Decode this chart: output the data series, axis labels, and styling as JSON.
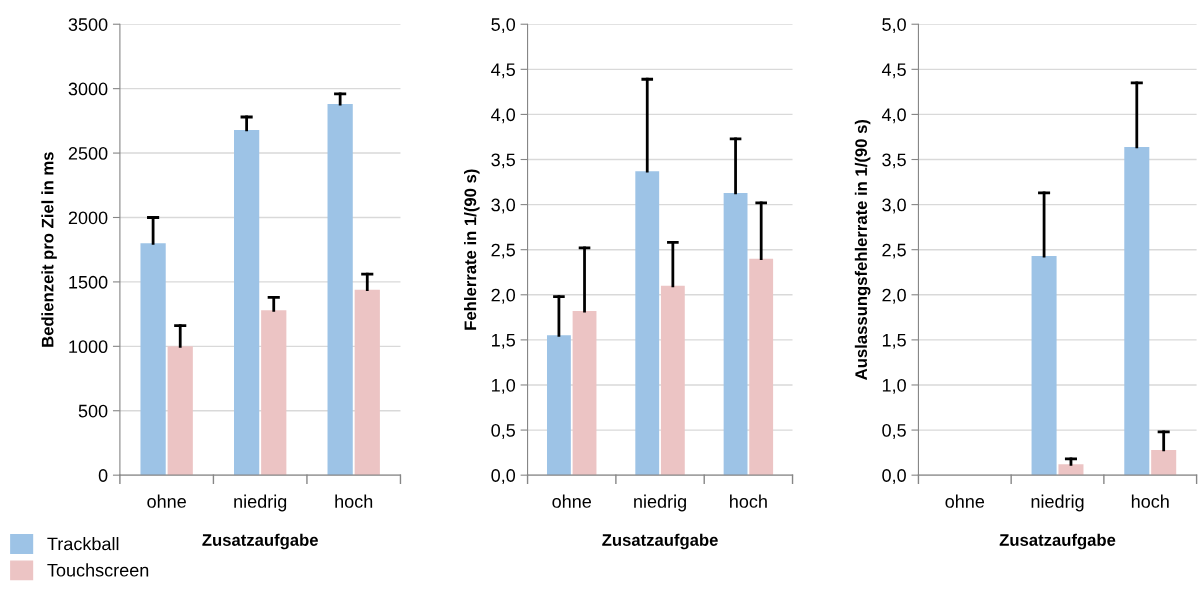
{
  "chart_data": [
    {
      "type": "bar",
      "xlabel": "Zusatzaufgabe",
      "ylabel": "Bedienzeit pro Ziel in ms",
      "categories": [
        "ohne",
        "niedrig",
        "hoch"
      ],
      "series": [
        {
          "name": "Trackball",
          "color": "#9dc3e6",
          "values": [
            1800,
            2680,
            2880
          ],
          "errors": [
            [
              1800,
              2000
            ],
            [
              2680,
              2780
            ],
            [
              2880,
              2960
            ]
          ]
        },
        {
          "name": "Touchscreen",
          "color": "#ecc4c4",
          "values": [
            1000,
            1280,
            1440
          ],
          "errors": [
            [
              1000,
              1160
            ],
            [
              1280,
              1380
            ],
            [
              1440,
              1560
            ]
          ]
        }
      ],
      "ylim": [
        0,
        3500
      ],
      "yticks": [
        0,
        500,
        1000,
        1500,
        2000,
        2500,
        3000,
        3500
      ],
      "grid": "y",
      "legend": "bottom left"
    },
    {
      "type": "bar",
      "xlabel": "Zusatzaufgabe",
      "ylabel": "Fehlerrate in 1/(90 s)",
      "categories": [
        "ohne",
        "niedrig",
        "hoch"
      ],
      "series": [
        {
          "color": "#9dc3e6",
          "values": [
            1.55,
            3.37,
            3.13
          ],
          "errors": [
            [
              1.55,
              1.98
            ],
            [
              3.37,
              4.39
            ],
            [
              3.13,
              3.73
            ]
          ]
        },
        {
          "color": "#ecc4c4",
          "values": [
            1.82,
            2.1,
            2.4
          ],
          "errors": [
            [
              1.82,
              2.52
            ],
            [
              2.1,
              2.58
            ],
            [
              2.4,
              3.02
            ]
          ]
        }
      ],
      "ylim": [
        0,
        5
      ],
      "yticks": [
        {
          "value": 0,
          "label": "0,0"
        },
        {
          "value": 0.5,
          "label": "0,5"
        },
        {
          "value": 1,
          "label": "1,0"
        },
        {
          "value": 1.5,
          "label": "1,5"
        },
        {
          "value": 2,
          "label": "2,0"
        },
        {
          "value": 2.5,
          "label": "2,5"
        },
        {
          "value": 3,
          "label": "3,0"
        },
        {
          "value": 3.5,
          "label": "3,5"
        },
        {
          "value": 4,
          "label": "4,0"
        },
        {
          "value": 4.5,
          "label": "4,5"
        },
        {
          "value": 5,
          "label": "5,0"
        }
      ],
      "grid": "y"
    },
    {
      "type": "bar",
      "xlabel": "Zusatzaufgabe",
      "ylabel": "Auslassungsfehlerrate in 1/(90 s)",
      "categories": [
        "ohne",
        "niedrig",
        "hoch"
      ],
      "series": [
        {
          "color": "#9dc3e6",
          "values": [
            0,
            2.43,
            3.64
          ],
          "errors": [
            null,
            [
              2.43,
              3.13
            ],
            [
              3.64,
              4.35
            ]
          ]
        },
        {
          "color": "#ecc4c4",
          "values": [
            0,
            0.12,
            0.28
          ],
          "errors": [
            null,
            [
              0.12,
              0.18
            ],
            [
              0.28,
              0.48
            ]
          ]
        }
      ],
      "ylim": [
        0,
        5
      ],
      "yticks": [
        {
          "value": 0,
          "label": "0,0"
        },
        {
          "value": 0.5,
          "label": "0,5"
        },
        {
          "value": 1,
          "label": "1,0"
        },
        {
          "value": 1.5,
          "label": "1,5"
        },
        {
          "value": 2,
          "label": "2,0"
        },
        {
          "value": 2.5,
          "label": "2,5"
        },
        {
          "value": 3,
          "label": "3,0"
        },
        {
          "value": 3.5,
          "label": "3,5"
        },
        {
          "value": 4,
          "label": "4,0"
        },
        {
          "value": 4.5,
          "label": "4,5"
        },
        {
          "value": 5,
          "label": "5,0"
        }
      ],
      "grid": "y"
    }
  ]
}
